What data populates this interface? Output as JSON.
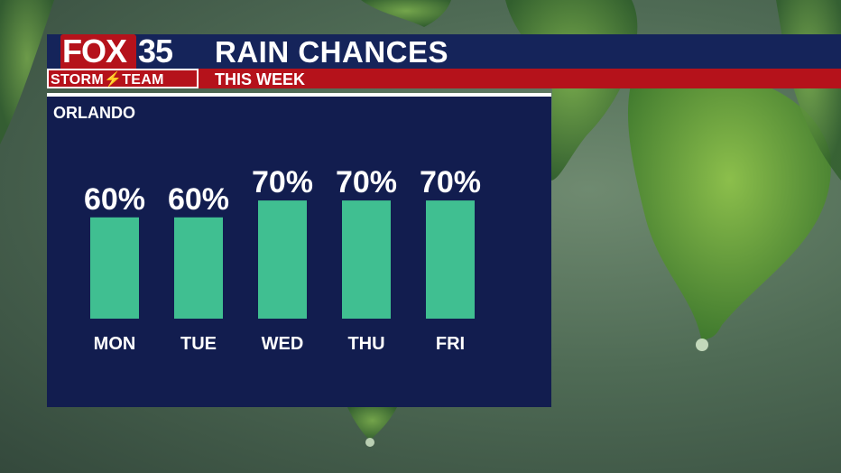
{
  "header": {
    "title": "RAIN CHANCES",
    "subtitle": "THIS WEEK",
    "logo_brand": "FOX",
    "logo_channel": "35",
    "logo_team": "STORM⚡TEAM"
  },
  "colors": {
    "navy": "#15245a",
    "red": "#b5121b",
    "panel": "#121d4f",
    "bar": "#40bf91"
  },
  "chart_data": {
    "type": "bar",
    "title": "RAIN CHANCES",
    "subtitle": "ORLANDO",
    "categories": [
      "MON",
      "TUE",
      "WED",
      "THU",
      "FRI"
    ],
    "values": [
      60,
      60,
      70,
      70,
      70
    ],
    "data_labels": [
      "60%",
      "60%",
      "70%",
      "70%",
      "70%"
    ],
    "units": "%",
    "grid": false
  }
}
